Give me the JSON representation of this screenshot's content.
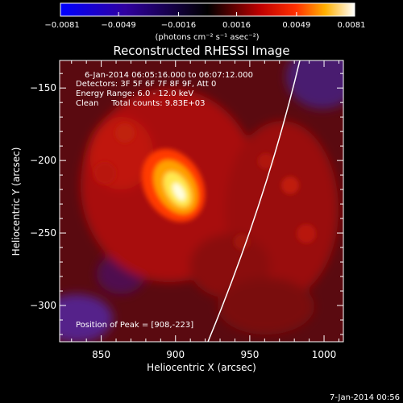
{
  "chart_data": {
    "type": "heatmap",
    "title": "Reconstructed RHESSI Image",
    "xlabel": "Heliocentric X (arcsec)",
    "ylabel": "Heliocentric Y (arcsec)",
    "xlim": [
      822,
      1013
    ],
    "ylim": [
      -325,
      -131
    ],
    "x_ticks": [
      850,
      900,
      950,
      1000
    ],
    "x_tick_labels": [
      "850",
      "900",
      "950",
      "1000"
    ],
    "y_ticks": [
      -300,
      -250,
      -200,
      -150
    ],
    "y_tick_labels": [
      "−300",
      "−250",
      "−200",
      "−150"
    ],
    "colorbar": {
      "range": [
        -0.0081,
        0.0081
      ],
      "ticks": [
        -0.0081,
        -0.0049,
        -0.0016,
        0.0016,
        0.0049,
        0.0081
      ],
      "tick_labels": [
        "−0.0081",
        "−0.0049",
        "−0.0016",
        "0.0016",
        "0.0049",
        "0.0081"
      ],
      "unit_label": "(photons cm⁻² s⁻¹ asec⁻²)",
      "colors": [
        "#0000ff",
        "#000000",
        "#ff0000",
        "#ffff00",
        "#ffffff"
      ]
    },
    "annotations": [
      "6-Jan-2014 06:05:16.000 to 06:07:12.000",
      "Detectors: 3F 5F 6F 7F 8F 9F, Att 0",
      "Energy Range: 6.0 - 12.0 keV",
      "Clean     Total counts: 9.83E+03"
    ],
    "peak_label": "Position of Peak = [908,-223]",
    "peak": {
      "x": 908,
      "y": -223
    },
    "footer": "7-Jan-2014 00:56"
  }
}
